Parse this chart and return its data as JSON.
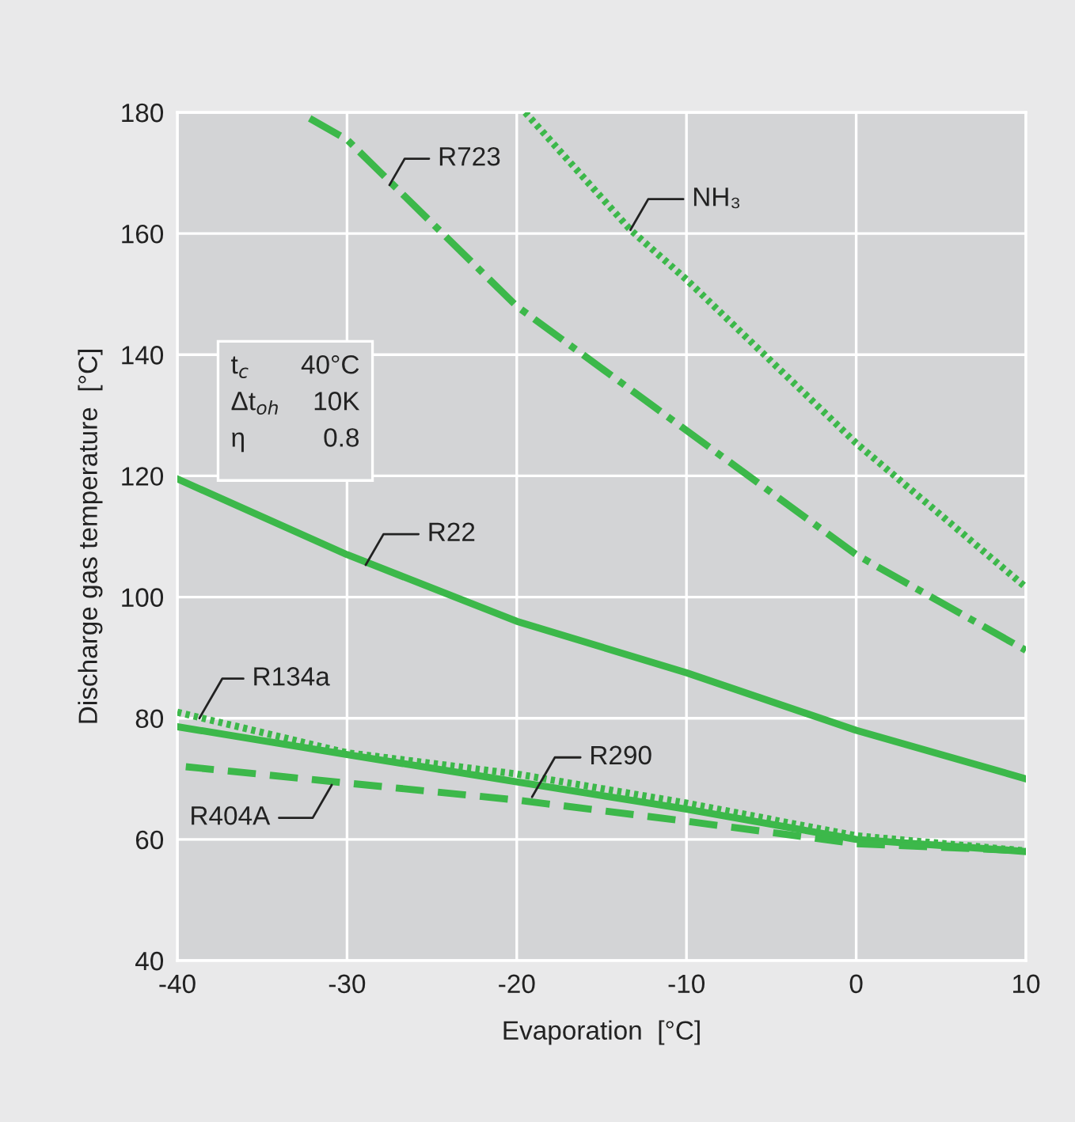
{
  "chart_data": {
    "type": "line",
    "xlabel": "Evaporation  [°C]",
    "ylabel": "Discharge gas temperature  [°C]",
    "xlim": [
      -40,
      10
    ],
    "xticks": [
      -40,
      -30,
      -20,
      -10,
      0,
      10
    ],
    "ylim": [
      40,
      180
    ],
    "yticks": [
      40,
      60,
      80,
      100,
      120,
      140,
      160,
      180
    ],
    "grid": true,
    "series": [
      {
        "color": "#3cb84a",
        "line_style": "dashdot",
        "x": [
          -32.2,
          -30,
          -20,
          -10,
          0,
          10
        ],
        "values": [
          179,
          175.5,
          148,
          127.5,
          107,
          91.2
        ]
      },
      {
        "color": "#3cb84a",
        "line_style": "dotted",
        "x": [
          -19.5,
          -13.3,
          -10,
          0,
          10
        ],
        "values": [
          180,
          160.6,
          152.4,
          125.4,
          101.6
        ]
      },
      {
        "color": "#3cb84a",
        "line_style": "solid",
        "x": [
          -40,
          -30,
          -20,
          -10,
          0,
          10
        ],
        "values": [
          119.5,
          107,
          96,
          87.5,
          78,
          70
        ]
      },
      {
        "color": "#3cb84a",
        "line_style": "dotted",
        "x": [
          -40,
          -30,
          -20,
          -10,
          0,
          10
        ],
        "values": [
          81,
          74.3,
          70.8,
          66,
          60.6,
          58.1
        ]
      },
      {
        "color": "#3cb84a",
        "line_style": "solid",
        "x": [
          -40,
          -30,
          -20,
          -10,
          0,
          10
        ],
        "values": [
          78.6,
          74,
          69.5,
          65,
          60,
          58
        ]
      },
      {
        "color": "#3cb84a",
        "line_style": "dashed",
        "x": [
          -39.5,
          -30,
          -20,
          -10,
          0,
          10
        ],
        "values": [
          72,
          69.3,
          66.5,
          63,
          59.3,
          58.1
        ]
      }
    ],
    "annotations": [
      {
        "text": "R723",
        "x": -27.5,
        "y": 168
      },
      {
        "text": "NH₃",
        "x": -13.3,
        "y": 160.6
      },
      {
        "text": "R22",
        "x": -28.9,
        "y": 105.3
      },
      {
        "text": "R134a",
        "x": -38.7,
        "y": 80
      },
      {
        "text": "R290",
        "x": -19.1,
        "y": 67
      },
      {
        "text": "R404A",
        "x": -30.9,
        "y": 69
      },
      "t$_{c}$",
      "40°C",
      "Δt$_{oh}$",
      "10K",
      "η",
      "0.8"
    ]
  }
}
